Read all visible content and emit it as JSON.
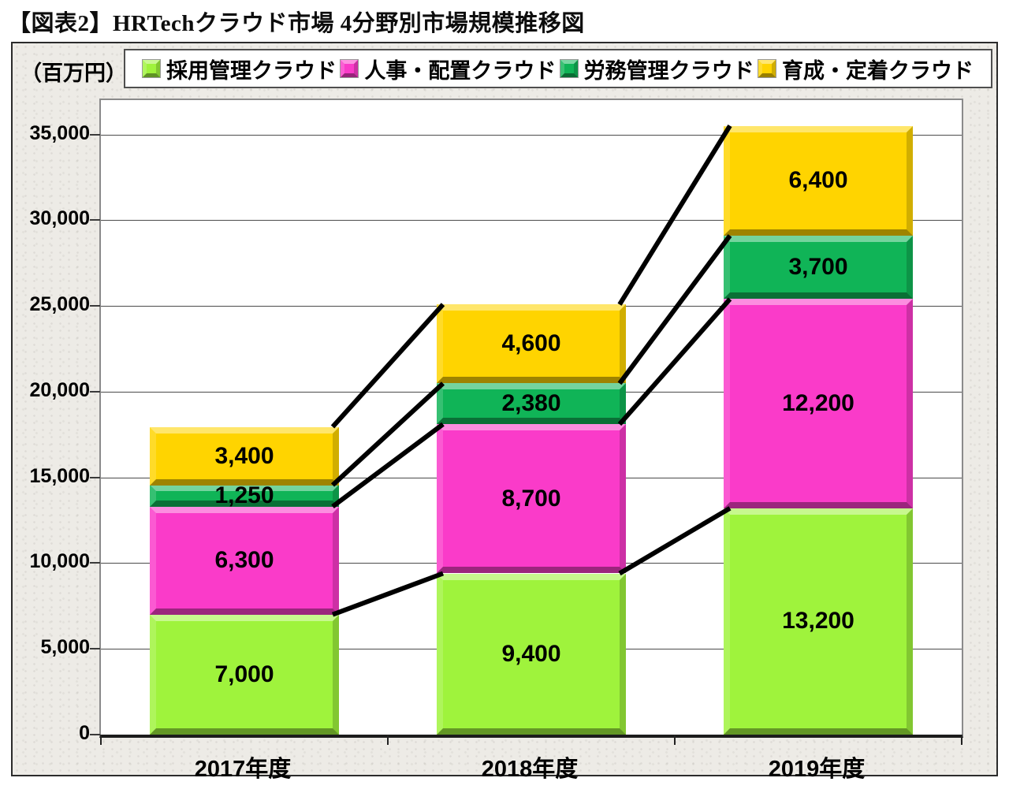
{
  "page": {
    "title": "【図表2】HRTechクラウド市場 4分野別市場規模推移図"
  },
  "chart": {
    "unit_label": "（百万円）"
  },
  "chart_data": {
    "type": "bar",
    "stacked": true,
    "title": "【図表2】HRTechクラウド市場 4分野別市場規模推移図",
    "xlabel": "",
    "ylabel": "百万円",
    "categories": [
      "2017年度",
      "2018年度",
      "2019年度"
    ],
    "series": [
      {
        "name": "採用管理クラウド",
        "color": "#9FF33C",
        "values": [
          7000,
          9400,
          13200
        ]
      },
      {
        "name": "人事・配置クラウド",
        "color": "#FA3BC9",
        "values": [
          6300,
          8700,
          12200
        ]
      },
      {
        "name": "労務管理クラウド",
        "color": "#10B457",
        "values": [
          1250,
          2380,
          3700
        ]
      },
      {
        "name": "育成・定着クラウド",
        "color": "#FFD400",
        "values": [
          3400,
          4600,
          6400
        ]
      }
    ],
    "ylim": [
      0,
      37000
    ],
    "ytick_step": 5000,
    "ytick_labels": [
      "0",
      "5,000",
      "10,000",
      "15,000",
      "20,000",
      "25,000",
      "30,000",
      "35,000"
    ],
    "grid": true,
    "legend_position": "top",
    "connector_lines": true,
    "segment_labels": true
  }
}
